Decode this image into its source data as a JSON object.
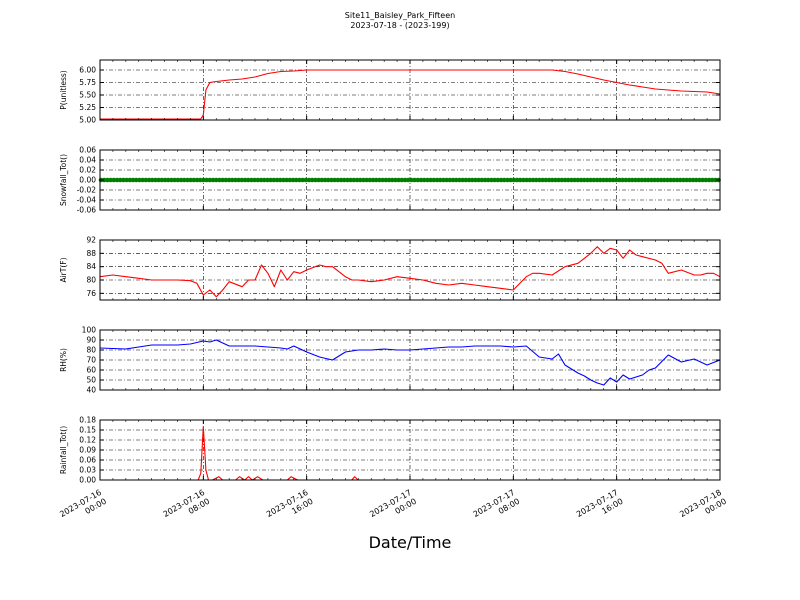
{
  "figure": {
    "title": "Site11_Baisley_Park_Fifteen",
    "subtitle": "2023-07-18 - (2023-199)",
    "xlabel": "Date/Time",
    "x_tick_labels": [
      [
        "2023-07-16",
        "00:00"
      ],
      [
        "2023-07-16",
        "08:00"
      ],
      [
        "2023-07-16",
        "16:00"
      ],
      [
        "2023-07-17",
        "00:00"
      ],
      [
        "2023-07-17",
        "08:00"
      ],
      [
        "2023-07-17",
        "16:00"
      ],
      [
        "2023-07-18",
        "00:00"
      ]
    ]
  },
  "chart_data": [
    {
      "type": "line",
      "ylabel": "P(unitless)",
      "ylim": [
        5.0,
        6.2
      ],
      "yticks": [
        "5.00",
        "5.25",
        "5.50",
        "5.75",
        "6.00"
      ],
      "ytick_values": [
        5.0,
        5.25,
        5.5,
        5.75,
        6.0
      ],
      "grid": true,
      "color": "#ff0000",
      "x_hours": [
        0,
        7.8,
        8.0,
        8.2,
        8.5,
        9.0,
        10.0,
        11.0,
        12.0,
        13.0,
        14.0,
        15.0,
        16.0,
        17.0,
        18.0,
        19.0,
        20.0,
        24.0,
        30.0,
        33.0,
        35.0,
        36.0,
        37.0,
        38.0,
        39.0,
        40.0,
        41.0,
        42.0,
        43.0,
        44.0,
        45.0,
        46.0,
        47.0,
        48.0
      ],
      "values": [
        5.02,
        5.02,
        5.1,
        5.6,
        5.75,
        5.77,
        5.8,
        5.82,
        5.86,
        5.93,
        5.97,
        5.98,
        6.0,
        6.0,
        6.0,
        6.0,
        6.0,
        6.0,
        6.0,
        6.0,
        6.0,
        5.97,
        5.92,
        5.86,
        5.8,
        5.75,
        5.7,
        5.66,
        5.62,
        5.6,
        5.58,
        5.57,
        5.56,
        5.52
      ]
    },
    {
      "type": "scatter",
      "ylabel": "Snowfall_Tot()",
      "ylim": [
        -0.06,
        0.06
      ],
      "yticks": [
        "-0.06",
        "-0.04",
        "-0.02",
        "0.00",
        "0.02",
        "0.04",
        "0.06"
      ],
      "ytick_values": [
        -0.06,
        -0.04,
        -0.02,
        0.0,
        0.02,
        0.04,
        0.06
      ],
      "grid": true,
      "color": "#008000",
      "x_range_hours": [
        0,
        48
      ],
      "constant_value": 0.0
    },
    {
      "type": "line",
      "ylabel": "AirT(F)",
      "ylim": [
        74,
        92
      ],
      "yticks": [
        "76",
        "80",
        "84",
        "88",
        "92"
      ],
      "ytick_values": [
        76,
        80,
        84,
        88,
        92
      ],
      "grid": true,
      "color": "#ff0000",
      "x_hours": [
        0,
        1,
        2,
        3,
        4,
        5,
        6,
        7,
        7.5,
        8,
        8.5,
        9,
        9.5,
        10,
        11,
        11.5,
        12,
        12.5,
        13,
        13.5,
        14,
        14.5,
        15,
        15.5,
        16,
        17,
        17.5,
        18,
        19,
        19.5,
        20,
        21,
        22,
        23,
        24,
        25,
        26,
        27,
        28,
        29,
        30,
        31,
        32,
        33,
        33.5,
        34,
        35,
        36,
        37,
        37.5,
        38,
        38.5,
        39,
        39.5,
        40,
        40.5,
        41,
        41.5,
        42,
        43,
        43.5,
        44,
        45,
        46,
        46.5,
        47,
        47.5,
        48
      ],
      "values": [
        81,
        81.5,
        81,
        80.5,
        80,
        80,
        80,
        79.8,
        79,
        75.5,
        77,
        75,
        77,
        79.5,
        78,
        80,
        80,
        84.5,
        82,
        78,
        83,
        80,
        82.5,
        82,
        83,
        84.5,
        84,
        84,
        81,
        80,
        80,
        79.5,
        80,
        81,
        80.5,
        80,
        79,
        78.5,
        79,
        78.5,
        78,
        77.5,
        77,
        81,
        82,
        82,
        81.5,
        84,
        85,
        86.5,
        88,
        90,
        88,
        89.5,
        89,
        86.5,
        89,
        87.5,
        87,
        86,
        85,
        82,
        83,
        81.5,
        81.5,
        82,
        82,
        81
      ]
    },
    {
      "type": "line",
      "ylabel": "RH(%)",
      "ylim": [
        40,
        100
      ],
      "yticks": [
        "40",
        "50",
        "60",
        "70",
        "80",
        "90",
        "100"
      ],
      "ytick_values": [
        40,
        50,
        60,
        70,
        80,
        90,
        100
      ],
      "grid": true,
      "color": "#0000ff",
      "x_hours": [
        0,
        2,
        3,
        4,
        6,
        7,
        8,
        8.5,
        9,
        10,
        11,
        12,
        13,
        14,
        14.5,
        15,
        16,
        17,
        18,
        19,
        20,
        21,
        22,
        23,
        24,
        25,
        26,
        27,
        28,
        29,
        30,
        31,
        32,
        33,
        34,
        35,
        35.5,
        36,
        37,
        37.5,
        38,
        38.5,
        39,
        39.5,
        40,
        40.5,
        41,
        42,
        42.5,
        43,
        44,
        45,
        46,
        47,
        48
      ],
      "values": [
        82,
        81,
        83,
        85,
        85,
        86,
        89,
        88,
        90,
        84,
        84,
        84,
        83,
        82,
        81,
        84,
        78,
        73,
        70,
        78,
        80,
        80,
        81,
        80,
        80,
        81,
        82,
        83,
        83,
        84,
        84,
        84,
        83,
        84,
        73,
        71,
        76,
        65,
        57,
        54,
        50,
        47,
        45,
        52,
        48,
        55,
        51,
        55,
        60,
        62,
        75,
        68,
        71,
        65,
        70
      ]
    },
    {
      "type": "line",
      "ylabel": "Rainfall_Tot()",
      "ylim": [
        0.0,
        0.18
      ],
      "yticks": [
        "0.00",
        "0.03",
        "0.06",
        "0.09",
        "0.12",
        "0.15",
        "0.18"
      ],
      "ytick_values": [
        0.0,
        0.03,
        0.06,
        0.09,
        0.12,
        0.15,
        0.18
      ],
      "grid": true,
      "color": "#ff0000",
      "x_hours": [
        0,
        7.6,
        7.8,
        8.0,
        8.2,
        8.4,
        8.7,
        9.2,
        9.5,
        10.5,
        10.8,
        11.2,
        11.5,
        11.8,
        12.2,
        12.6,
        14.5,
        14.8,
        15.3,
        19.5,
        19.7,
        20.0,
        48
      ],
      "values": [
        0,
        0,
        0.02,
        0.16,
        0.03,
        0.0,
        0.0,
        0.01,
        0.0,
        0.0,
        0.01,
        0.0,
        0.01,
        0.0,
        0.01,
        0.0,
        0.0,
        0.01,
        0.0,
        0.0,
        0.01,
        0.0,
        0.0
      ]
    }
  ]
}
